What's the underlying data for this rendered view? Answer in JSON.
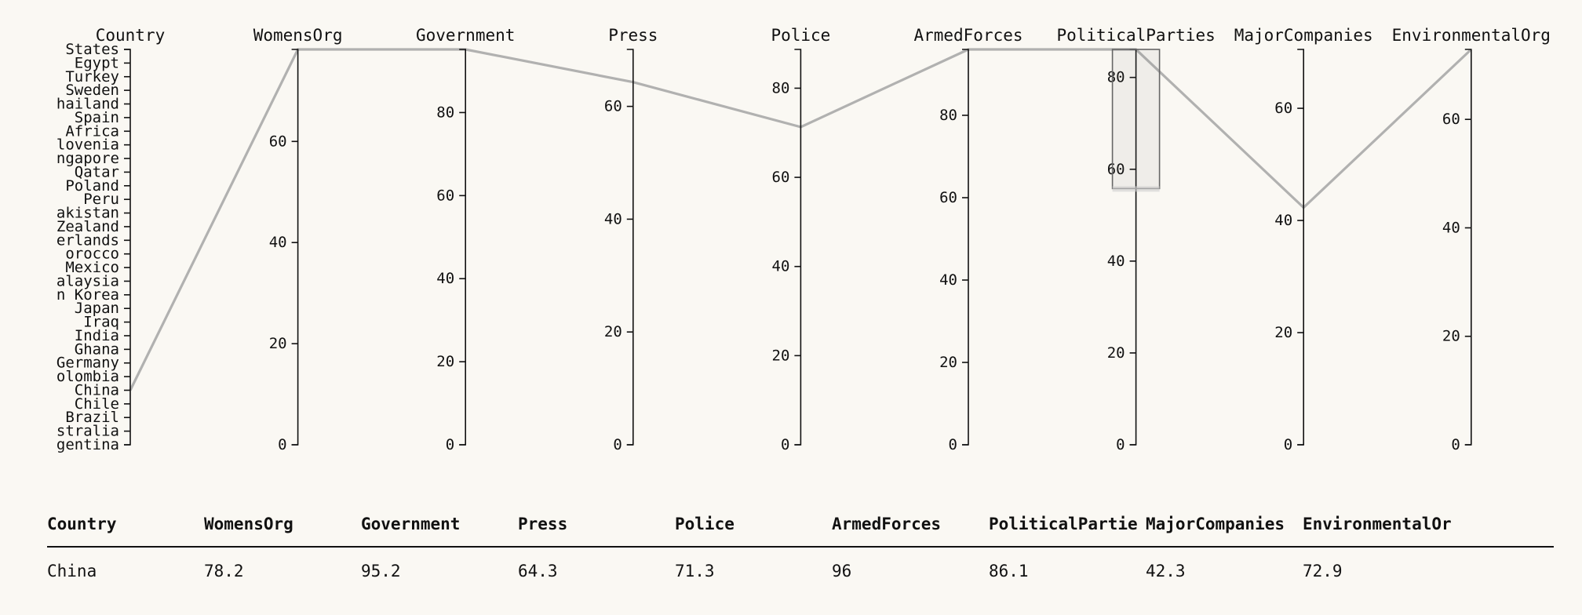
{
  "chart_data": {
    "type": "parallel-coordinates",
    "dimensions": [
      "Country",
      "WomensOrg",
      "Government",
      "Press",
      "Police",
      "ArmedForces",
      "PoliticalParties",
      "MajorCompanies",
      "EnvironmentalOrg"
    ],
    "axes": [
      {
        "name": "Country",
        "kind": "categorical",
        "categories": [
          "States",
          "Egypt",
          "Turkey",
          "Sweden",
          "hailand",
          "Spain",
          "Africa",
          "lovenia",
          "ngapore",
          "Qatar",
          "Poland",
          "Peru",
          "akistan",
          "Zealand",
          "erlands",
          "orocco",
          "Mexico",
          "alaysia",
          "n Korea",
          "Japan",
          "Iraq",
          "India",
          "Ghana",
          "Germany",
          "olombia",
          "China",
          "Chile",
          "Brazil",
          "stralia",
          "gentina"
        ]
      },
      {
        "name": "WomensOrg",
        "kind": "numeric",
        "domain": [
          0,
          78.2
        ],
        "ticks": [
          "0",
          "20",
          "40",
          "60"
        ],
        "tick_values": [
          0,
          20,
          40,
          60
        ]
      },
      {
        "name": "Government",
        "kind": "numeric",
        "domain": [
          0,
          95.2
        ],
        "ticks": [
          "0",
          "20",
          "40",
          "60",
          "80"
        ],
        "tick_values": [
          0,
          20,
          40,
          60,
          80
        ]
      },
      {
        "name": "Press",
        "kind": "numeric",
        "domain": [
          0,
          70.1
        ],
        "ticks": [
          "0",
          "20",
          "40",
          "60"
        ],
        "tick_values": [
          0,
          20,
          40,
          60
        ]
      },
      {
        "name": "Police",
        "kind": "numeric",
        "domain": [
          0,
          88.7
        ],
        "ticks": [
          "0",
          "20",
          "40",
          "60",
          "80"
        ],
        "tick_values": [
          0,
          20,
          40,
          60,
          80
        ]
      },
      {
        "name": "ArmedForces",
        "kind": "numeric",
        "domain": [
          0,
          96
        ],
        "ticks": [
          "0",
          "20",
          "40",
          "60",
          "80"
        ],
        "tick_values": [
          0,
          20,
          40,
          60,
          80
        ]
      },
      {
        "name": "PoliticalParties",
        "kind": "numeric",
        "domain": [
          0,
          86.1
        ],
        "ticks": [
          "0",
          "20",
          "40",
          "60",
          "80"
        ],
        "tick_values": [
          0,
          20,
          40,
          60,
          80
        ],
        "brush": [
          55.8,
          86.1
        ]
      },
      {
        "name": "MajorCompanies",
        "kind": "numeric",
        "domain": [
          0,
          70.5
        ],
        "ticks": [
          "0",
          "20",
          "40",
          "60"
        ],
        "tick_values": [
          0,
          20,
          40,
          60
        ]
      },
      {
        "name": "EnvironmentalOrg",
        "kind": "numeric",
        "domain": [
          0,
          72.9
        ],
        "ticks": [
          "0",
          "20",
          "40",
          "60"
        ],
        "tick_values": [
          0,
          20,
          40,
          60
        ]
      }
    ],
    "records": [
      {
        "Country": "China",
        "WomensOrg": 78.2,
        "Government": 95.2,
        "Press": 64.3,
        "Police": 71.3,
        "ArmedForces": 96,
        "PoliticalParties": 86.1,
        "MajorCompanies": 42.3,
        "EnvironmentalOrg": 72.9
      }
    ],
    "line_color": "#a8a8a8"
  },
  "table": {
    "headers": [
      "Country",
      "WomensOrg",
      "Government",
      "Press",
      "Police",
      "ArmedForces",
      "PoliticalPartie",
      "MajorCompanies",
      "EnvironmentalOr"
    ],
    "rows": [
      [
        "China",
        "78.2",
        "95.2",
        "64.3",
        "71.3",
        "96",
        "86.1",
        "42.3",
        "72.9"
      ]
    ]
  }
}
